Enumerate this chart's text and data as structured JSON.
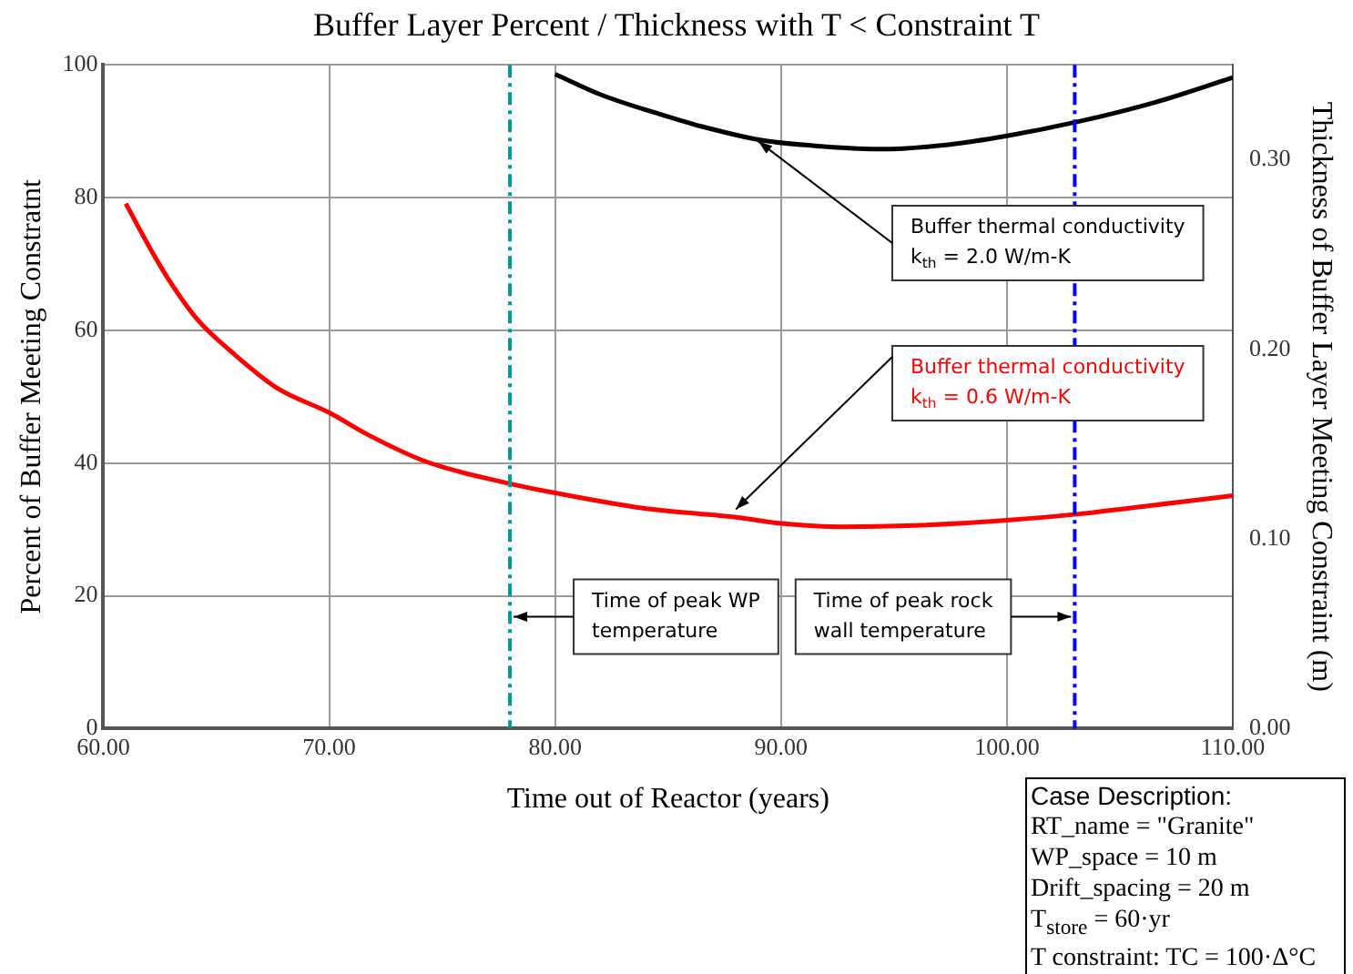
{
  "chart_data": {
    "type": "line",
    "title": "Buffer Layer Percent / Thickness with T < Constraint T",
    "xlabel": "Time out of Reactor (years)",
    "ylabel": "Percent of Buffer Meeting Constratnt",
    "y2label": "Thickness of Buffer Layer Meeting Constraint (m)",
    "xlim": [
      60,
      110
    ],
    "xticks": [
      {
        "value": 60,
        "label": "60.00"
      },
      {
        "value": 70,
        "label": "70.00"
      },
      {
        "value": 80,
        "label": "80.00"
      },
      {
        "value": 90,
        "label": "90.00"
      },
      {
        "value": 100,
        "label": "100.00"
      },
      {
        "value": 110,
        "label": "110.00"
      }
    ],
    "ylim": [
      0,
      100
    ],
    "yticks": [
      0,
      20,
      40,
      60,
      80,
      100
    ],
    "y2lim": [
      0,
      0.35
    ],
    "y2ticks": [
      {
        "value": 0,
        "label": "0.00"
      },
      {
        "value": 0.1,
        "label": "0.10"
      },
      {
        "value": 0.2,
        "label": "0.20"
      },
      {
        "value": 0.3,
        "label": "0.30"
      }
    ],
    "grid": true,
    "legend": false,
    "marker": "none",
    "line_style": "solid",
    "series": [
      {
        "name": "Buffer thermal conductivity\nk$_{th}$ = 2.0 W/m-K",
        "color": "#000000",
        "x": [
          80,
          82.1,
          84.7,
          86.5,
          89.2,
          91.9,
          94.5,
          97.2,
          100,
          103.1,
          106.6,
          110
        ],
        "values": [
          98.6,
          95.4,
          92.5,
          90.7,
          88.6,
          87.7,
          87.3,
          87.9,
          89.3,
          91.4,
          94.4,
          98.1
        ]
      },
      {
        "name": "Buffer thermal conductivity\nk$_{th}$ = 0.6 W/m-K",
        "color": "#ff0000",
        "x": [
          61,
          62.1,
          63,
          64.2,
          65.8,
          67.7,
          70,
          71.7,
          74.3,
          78,
          80,
          83.9,
          88.1,
          90,
          92.7,
          95.9,
          100,
          103.1,
          106.6,
          110
        ],
        "values": [
          79.1,
          72.2,
          67.1,
          61.5,
          56.4,
          51.3,
          47.6,
          44.3,
          40.2,
          36.9,
          35.5,
          33.2,
          31.8,
          30.9,
          30.4,
          30.6,
          31.4,
          32.3,
          33.7,
          35.1
        ]
      }
    ],
    "ref_lines": [
      {
        "axis": "x",
        "value": 78,
        "label": "Time of peak WP\ntemperature",
        "color": "#009999",
        "line_style": "dashed"
      },
      {
        "axis": "x",
        "value": 103,
        "label": "Time of peak rock\nwall temperature",
        "color": "#0000ff",
        "line_style": "dashed"
      }
    ],
    "annotations": [
      "Case Description:",
      "RT_name = \"Granite\"",
      "WP_space = 10 m",
      "Drift_spacing = 20 m",
      "T$_{store}$ = 60·yr",
      "T constraint: TC = 100·Δ°C"
    ]
  }
}
